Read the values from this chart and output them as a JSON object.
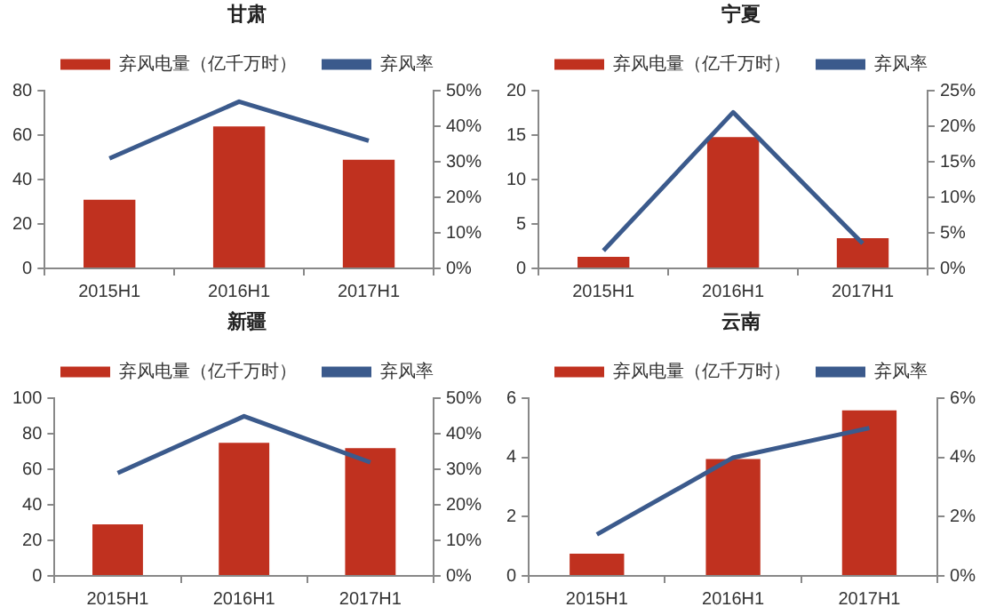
{
  "chart_data": [
    {
      "type": "bar",
      "title": "甘肃",
      "categories": [
        "2015H1",
        "2016H1",
        "2017H1"
      ],
      "series": [
        {
          "name": "弃风电量（亿千万时）",
          "color": "#c0311f",
          "values": [
            31,
            64,
            49
          ]
        },
        {
          "name": "弃风率",
          "type": "line",
          "axis": "y2",
          "color": "#3b5a8c",
          "values": [
            31,
            47,
            36
          ]
        }
      ],
      "ylim": [
        0,
        80
      ],
      "yticks": [
        0,
        20,
        40,
        60,
        80
      ],
      "y2lim": [
        0,
        50
      ],
      "y2ticks": [
        {
          "value": 0,
          "label": "0%"
        },
        {
          "value": 10,
          "label": "10%"
        },
        {
          "value": 20,
          "label": "20%"
        },
        {
          "value": 30,
          "label": "30%"
        },
        {
          "value": 40,
          "label": "40%"
        },
        {
          "value": 50,
          "label": "50%"
        }
      ],
      "legend": "top",
      "grid": false
    },
    {
      "type": "bar",
      "title": "宁夏",
      "categories": [
        "2015H1",
        "2016H1",
        "2017H1"
      ],
      "series": [
        {
          "name": "弃风电量（亿千万时）",
          "color": "#c0311f",
          "values": [
            1.3,
            14.8,
            3.4
          ]
        },
        {
          "name": "弃风率",
          "type": "line",
          "axis": "y2",
          "color": "#3b5a8c",
          "values": [
            2.5,
            22,
            3.5
          ]
        }
      ],
      "ylim": [
        0,
        20
      ],
      "yticks": [
        0,
        5,
        10,
        15,
        20
      ],
      "y2lim": [
        0,
        25
      ],
      "y2ticks": [
        {
          "value": 0,
          "label": "0%"
        },
        {
          "value": 5,
          "label": "5%"
        },
        {
          "value": 10,
          "label": "10%"
        },
        {
          "value": 15,
          "label": "15%"
        },
        {
          "value": 20,
          "label": "20%"
        },
        {
          "value": 25,
          "label": "25%"
        }
      ],
      "legend": "top",
      "grid": false
    },
    {
      "type": "bar",
      "title": "新疆",
      "categories": [
        "2015H1",
        "2016H1",
        "2017H1"
      ],
      "series": [
        {
          "name": "弃风电量（亿千万时）",
          "color": "#c0311f",
          "values": [
            29,
            75,
            72
          ]
        },
        {
          "name": "弃风率",
          "type": "line",
          "axis": "y2",
          "color": "#3b5a8c",
          "values": [
            29,
            45,
            32
          ]
        }
      ],
      "ylim": [
        0,
        100
      ],
      "yticks": [
        0,
        20,
        40,
        60,
        80,
        100
      ],
      "y2lim": [
        0,
        50
      ],
      "y2ticks": [
        {
          "value": 0,
          "label": "0%"
        },
        {
          "value": 10,
          "label": "10%"
        },
        {
          "value": 20,
          "label": "20%"
        },
        {
          "value": 30,
          "label": "30%"
        },
        {
          "value": 40,
          "label": "40%"
        },
        {
          "value": 50,
          "label": "50%"
        }
      ],
      "legend": "top",
      "grid": false
    },
    {
      "type": "bar",
      "title": "云南",
      "categories": [
        "2015H1",
        "2016H1",
        "2017H1"
      ],
      "series": [
        {
          "name": "弃风电量（亿千万时）",
          "color": "#c0311f",
          "values": [
            0.75,
            3.95,
            5.6
          ]
        },
        {
          "name": "弃风率",
          "type": "line",
          "axis": "y2",
          "color": "#3b5a8c",
          "values": [
            1.4,
            4,
            5
          ]
        }
      ],
      "ylim": [
        0,
        6
      ],
      "yticks": [
        0,
        2,
        4,
        6
      ],
      "y2lim": [
        0,
        6
      ],
      "y2ticks": [
        {
          "value": 0,
          "label": "0%"
        },
        {
          "value": 2,
          "label": "2%"
        },
        {
          "value": 4,
          "label": "4%"
        },
        {
          "value": 6,
          "label": "6%"
        }
      ],
      "legend": "top",
      "grid": false
    }
  ]
}
